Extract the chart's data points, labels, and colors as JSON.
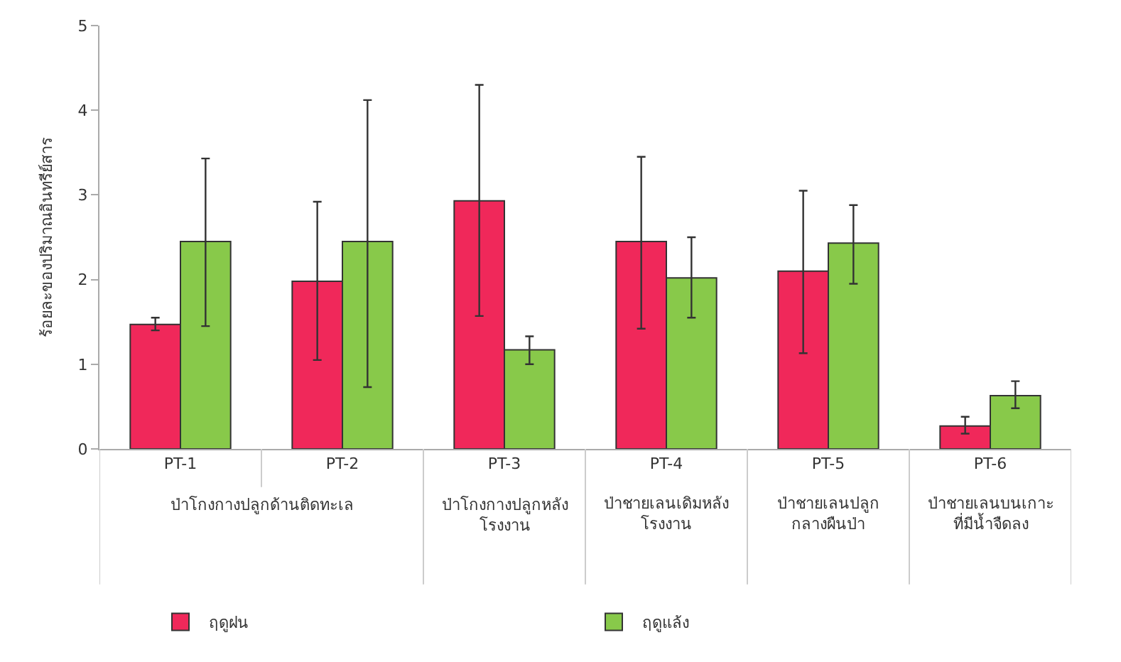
{
  "chart_data": {
    "type": "bar",
    "ylabel": "ร้อยละของปริมาณอินทรีย์สาร",
    "categories": [
      "PT-1",
      "PT-2",
      "PT-3",
      "PT-4",
      "PT-5",
      "PT-6"
    ],
    "series": [
      {
        "name": "ฤดูฝน",
        "color": "#f0285a",
        "values": [
          1.47,
          1.98,
          2.93,
          2.45,
          2.1,
          0.27
        ],
        "errors": [
          [
            1.4,
            1.55
          ],
          [
            1.05,
            2.92
          ],
          [
            1.57,
            4.3
          ],
          [
            1.42,
            3.45
          ],
          [
            1.13,
            3.05
          ],
          [
            0.18,
            0.38
          ]
        ]
      },
      {
        "name": "ฤดูแล้ง",
        "color": "#88c94a",
        "values": [
          2.45,
          2.45,
          1.17,
          2.02,
          2.43,
          0.63
        ],
        "errors": [
          [
            1.45,
            3.43
          ],
          [
            0.73,
            4.12
          ],
          [
            1.0,
            1.33
          ],
          [
            1.55,
            2.5
          ],
          [
            1.95,
            2.88
          ],
          [
            0.48,
            0.8
          ]
        ]
      }
    ],
    "annotations": [
      "ป่าโกงกางปลูกด้านติดทะเล",
      "ป่าโกงกางปลูกหลัง\nโรงงาน",
      "ป่าชายเลนเดิมหลัง\nโรงงาน",
      "ป่าชายเลนปลูก\nกลางผืนป่า",
      "ป่าชายเลนบนเกาะ\nที่มีน้ำจืดลง"
    ],
    "ylim": [
      0,
      5
    ],
    "yticks": [
      0,
      1,
      2,
      3,
      4,
      5
    ],
    "legend": "bottom"
  }
}
